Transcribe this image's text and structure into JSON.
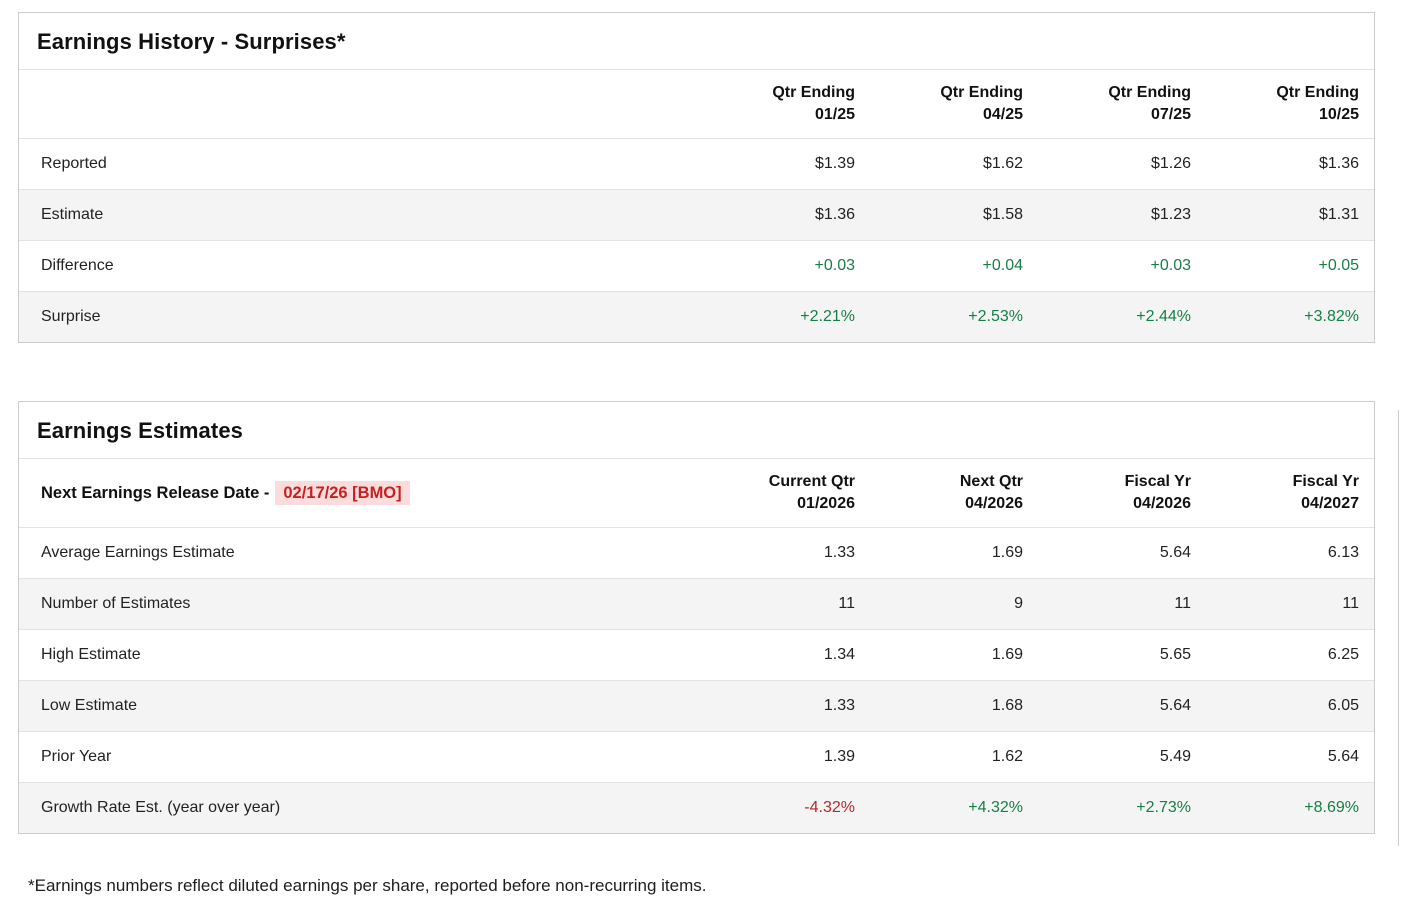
{
  "colors": {
    "positive": "#157f45",
    "negative": "#b3282d",
    "date_text": "#c42222",
    "date_highlight_bg": "#fbdcdc",
    "row_alt_bg": "#f4f4f4",
    "border": "#cccccc"
  },
  "history": {
    "title": "Earnings History - Surprises*",
    "columns": [
      "Qtr Ending\n01/25",
      "Qtr Ending\n04/25",
      "Qtr Ending\n07/25",
      "Qtr Ending\n10/25"
    ],
    "rows": [
      {
        "label": "Reported",
        "values": [
          "$1.39",
          "$1.62",
          "$1.26",
          "$1.36"
        ]
      },
      {
        "label": "Estimate",
        "values": [
          "$1.36",
          "$1.58",
          "$1.23",
          "$1.31"
        ]
      },
      {
        "label": "Difference",
        "values": [
          "+0.03",
          "+0.04",
          "+0.03",
          "+0.05"
        ]
      },
      {
        "label": "Surprise",
        "values": [
          "+2.21%",
          "+2.53%",
          "+2.44%",
          "+3.82%"
        ]
      }
    ]
  },
  "estimates": {
    "title": "Earnings Estimates",
    "release_label": "Next Earnings Release Date -",
    "release_date": "02/17/26 [BMO]",
    "columns": [
      "Current Qtr\n01/2026",
      "Next Qtr\n04/2026",
      "Fiscal Yr\n04/2026",
      "Fiscal Yr\n04/2027"
    ],
    "rows": [
      {
        "label": "Average Earnings Estimate",
        "values": [
          "1.33",
          "1.69",
          "5.64",
          "6.13"
        ]
      },
      {
        "label": "Number of Estimates",
        "values": [
          "11",
          "9",
          "11",
          "11"
        ]
      },
      {
        "label": "High Estimate",
        "values": [
          "1.34",
          "1.69",
          "5.65",
          "6.25"
        ]
      },
      {
        "label": "Low Estimate",
        "values": [
          "1.33",
          "1.68",
          "5.64",
          "6.05"
        ]
      },
      {
        "label": "Prior Year",
        "values": [
          "1.39",
          "1.62",
          "5.49",
          "5.64"
        ]
      },
      {
        "label": "Growth Rate Est. (year over year)",
        "values": [
          "-4.32%",
          "+4.32%",
          "+2.73%",
          "+8.69%"
        ]
      }
    ]
  },
  "footnote": "*Earnings numbers reflect diluted earnings per share, reported before non-recurring items."
}
